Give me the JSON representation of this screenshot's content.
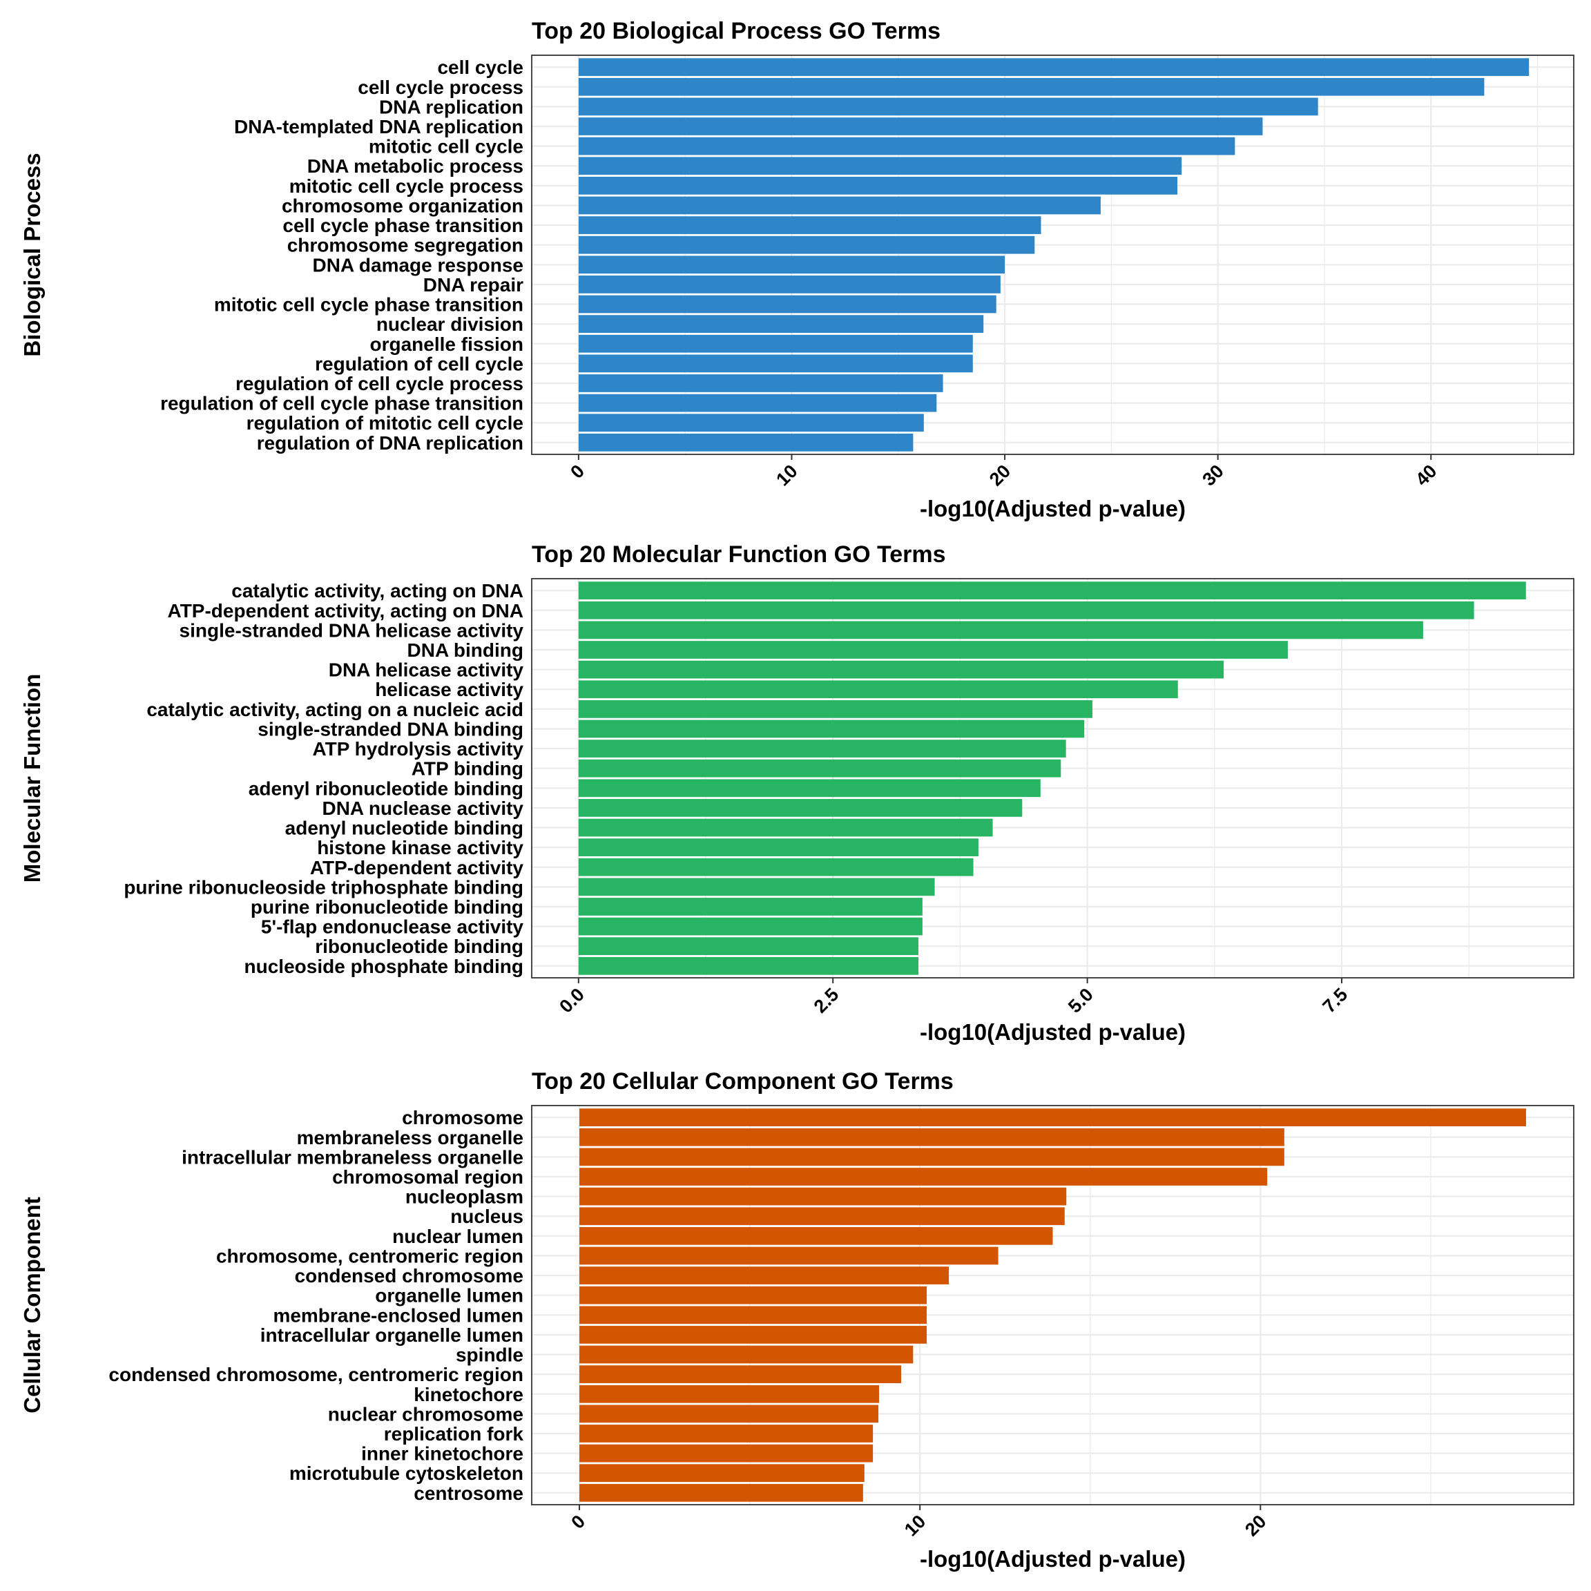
{
  "colors": {
    "grid": "#ebebeb",
    "panel_border": "#333333"
  },
  "chart_data": [
    {
      "type": "bar",
      "orientation": "horizontal",
      "title": "Top 20 Biological Process GO Terms",
      "xlabel": "-log10(Adjusted p-value)",
      "ylabel": "Biological Process",
      "color": "#2E86C8",
      "xlim": [
        -2.2,
        46.7
      ],
      "xticks": [
        0,
        10,
        20,
        30,
        40
      ],
      "xtick_labels": [
        "0",
        "10",
        "20",
        "30",
        "40"
      ],
      "categories": [
        "cell cycle",
        "cell cycle process",
        "DNA replication",
        "DNA-templated DNA replication",
        "mitotic cell cycle",
        "DNA metabolic process",
        "mitotic cell cycle process",
        "chromosome organization",
        "cell cycle phase transition",
        "chromosome segregation",
        "DNA damage response",
        "DNA repair",
        "mitotic cell cycle phase transition",
        "nuclear division",
        "organelle fission",
        "regulation of cell cycle",
        "regulation of cell cycle process",
        "regulation of cell cycle phase transition",
        "regulation of mitotic cell cycle",
        "regulation of DNA replication"
      ],
      "values": [
        44.6,
        42.5,
        34.7,
        32.1,
        30.8,
        28.3,
        28.1,
        24.5,
        21.7,
        21.4,
        20.0,
        19.8,
        19.6,
        19.0,
        18.5,
        18.5,
        17.1,
        16.8,
        16.2,
        15.7
      ]
    },
    {
      "type": "bar",
      "orientation": "horizontal",
      "title": "Top 20 Molecular Function GO Terms",
      "xlabel": "-log10(Adjusted p-value)",
      "ylabel": "Molecular Function",
      "color": "#27B463",
      "xlim": [
        -0.46,
        9.78
      ],
      "xticks": [
        0,
        2.5,
        5.0,
        7.5
      ],
      "xtick_labels": [
        "0.0",
        "2.5",
        "5.0",
        "7.5"
      ],
      "categories": [
        "catalytic activity, acting on DNA",
        "ATP-dependent activity, acting on DNA",
        "single-stranded DNA helicase activity",
        "DNA binding",
        "DNA helicase activity",
        "helicase activity",
        "catalytic activity, acting on a nucleic acid",
        "single-stranded DNA binding",
        "ATP hydrolysis activity",
        "ATP binding",
        "adenyl ribonucleotide binding",
        "DNA nuclease activity",
        "adenyl nucleotide binding",
        "histone kinase activity",
        "ATP-dependent activity",
        "purine ribonucleoside triphosphate binding",
        "purine ribonucleotide binding",
        "5'-flap endonuclease activity",
        "ribonucleotide binding",
        "nucleoside phosphate binding"
      ],
      "values": [
        9.31,
        8.8,
        8.3,
        6.97,
        6.34,
        5.89,
        5.05,
        4.97,
        4.79,
        4.74,
        4.54,
        4.36,
        4.07,
        3.93,
        3.88,
        3.5,
        3.38,
        3.38,
        3.34,
        3.34
      ]
    },
    {
      "type": "bar",
      "orientation": "horizontal",
      "title": "Top 20 Cellular Component GO Terms",
      "xlabel": "-log10(Adjusted p-value)",
      "ylabel": "Cellular Component",
      "color": "#D45500",
      "xlim": [
        -1.4,
        29.2
      ],
      "xticks": [
        0,
        10,
        20
      ],
      "xtick_labels": [
        "0",
        "10",
        "20"
      ],
      "categories": [
        "chromosome",
        "membraneless organelle",
        "intracellular membraneless organelle",
        "chromosomal region",
        "nucleoplasm",
        "nucleus",
        "nuclear lumen",
        "chromosome, centromeric region",
        "condensed chromosome",
        "organelle lumen",
        "membrane-enclosed lumen",
        "intracellular organelle lumen",
        "spindle",
        "condensed chromosome, centromeric region",
        "kinetochore",
        "nuclear chromosome",
        "replication fork",
        "inner kinetochore",
        "microtubule cytoskeleton",
        "centrosome"
      ],
      "values": [
        27.8,
        20.7,
        20.7,
        20.2,
        14.3,
        14.25,
        13.9,
        12.3,
        10.85,
        10.2,
        10.2,
        10.2,
        9.8,
        9.45,
        8.8,
        8.78,
        8.62,
        8.62,
        8.37,
        8.33
      ]
    }
  ]
}
